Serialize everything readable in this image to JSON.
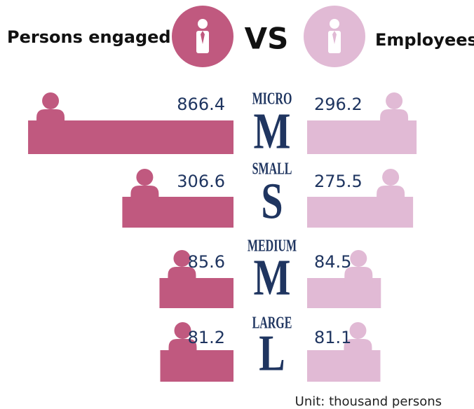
{
  "chart_data": {
    "type": "bar",
    "categories": [
      "MICRO",
      "SMALL",
      "MEDIUM",
      "LARGE"
    ],
    "category_letters": [
      "M",
      "S",
      "M",
      "L"
    ],
    "vs_label": "VS",
    "series": [
      {
        "name": "Persons engaged",
        "color": "#c0597f",
        "values": [
          866.4,
          306.6,
          85.6,
          81.2
        ]
      },
      {
        "name": "Employees",
        "color": "#e1bad5",
        "values": [
          296.2,
          275.5,
          84.5,
          81.1
        ]
      }
    ],
    "unit_note": "Unit: thousand persons"
  }
}
